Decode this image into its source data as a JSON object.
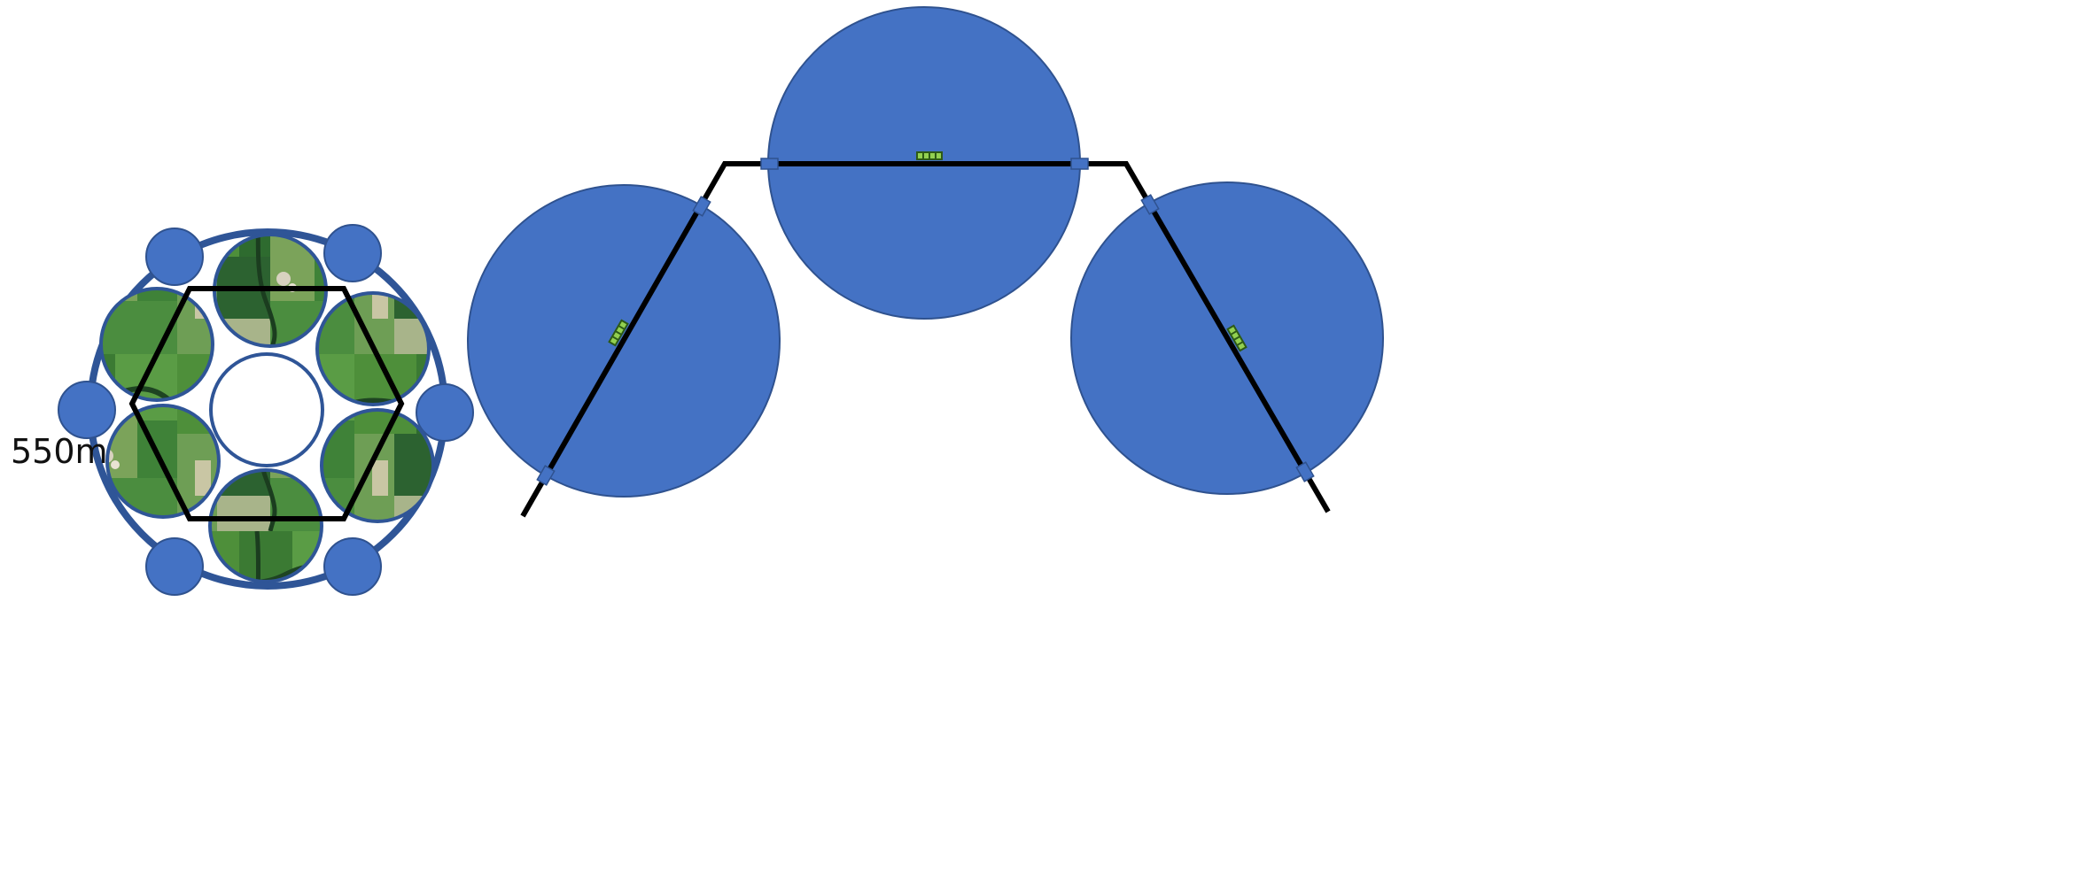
{
  "layout_label": "550m",
  "colors": {
    "disc_fill": "#4472C4",
    "disc_stroke": "#2F528F",
    "ring_stroke": "#2F5597",
    "track": "#000000",
    "panel_fill": "#92D050",
    "panel_cell": "#3A7D1E",
    "field_base": "#2E6B2F"
  },
  "icons": {
    "aerial_field": "aerial-field-icon",
    "solar_panel": "solar-panel-icon",
    "joint_block": "joint-block-icon"
  },
  "cluster": {
    "aerial_fields": 6,
    "outer_discs": 6,
    "center": "empty-circle"
  },
  "rail_modules": 3
}
